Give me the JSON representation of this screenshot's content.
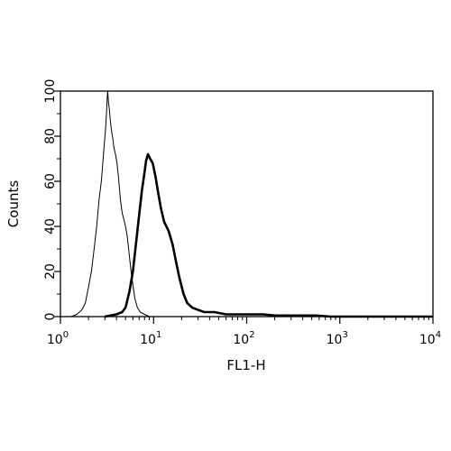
{
  "chart_data": {
    "type": "line",
    "xlabel": "FL1-H",
    "ylabel": "Counts",
    "x_scale": "log",
    "xlim": [
      1,
      10000
    ],
    "ylim": [
      0,
      100
    ],
    "x_ticks": [
      {
        "value": 1,
        "base": "10",
        "exp": "0"
      },
      {
        "value": 10,
        "base": "10",
        "exp": "1"
      },
      {
        "value": 100,
        "base": "10",
        "exp": "2"
      },
      {
        "value": 1000,
        "base": "10",
        "exp": "3"
      },
      {
        "value": 10000,
        "base": "10",
        "exp": "4"
      }
    ],
    "y_ticks": [
      "0",
      "20",
      "40",
      "60",
      "80",
      "100"
    ],
    "grid": false,
    "series": [
      {
        "style": "thin",
        "color": "#000000",
        "points": [
          [
            1.3,
            0
          ],
          [
            1.5,
            1
          ],
          [
            1.7,
            3
          ],
          [
            1.85,
            6
          ],
          [
            2.0,
            13
          ],
          [
            2.15,
            20
          ],
          [
            2.3,
            30
          ],
          [
            2.45,
            40
          ],
          [
            2.6,
            52
          ],
          [
            2.75,
            60
          ],
          [
            2.85,
            68
          ],
          [
            2.95,
            76
          ],
          [
            3.05,
            83
          ],
          [
            3.12,
            90
          ],
          [
            3.18,
            97
          ],
          [
            3.22,
            100
          ],
          [
            3.28,
            95
          ],
          [
            3.35,
            92
          ],
          [
            3.45,
            86
          ],
          [
            3.55,
            82
          ],
          [
            3.65,
            79
          ],
          [
            3.75,
            75
          ],
          [
            3.9,
            72
          ],
          [
            4.05,
            68
          ],
          [
            4.2,
            62
          ],
          [
            4.4,
            52
          ],
          [
            4.6,
            46
          ],
          [
            4.8,
            43
          ],
          [
            5.0,
            40
          ],
          [
            5.2,
            36
          ],
          [
            5.4,
            30
          ],
          [
            5.7,
            21
          ],
          [
            6.0,
            14
          ],
          [
            6.3,
            8
          ],
          [
            6.7,
            4
          ],
          [
            7.2,
            2
          ],
          [
            8.0,
            1
          ],
          [
            9.0,
            0
          ]
        ]
      },
      {
        "style": "thick",
        "color": "#000000",
        "points": [
          [
            3.0,
            0
          ],
          [
            4.0,
            1
          ],
          [
            4.6,
            2
          ],
          [
            5.0,
            4
          ],
          [
            5.5,
            11
          ],
          [
            6.0,
            20
          ],
          [
            6.5,
            33
          ],
          [
            7.0,
            45
          ],
          [
            7.5,
            56
          ],
          [
            8.0,
            64
          ],
          [
            8.3,
            69
          ],
          [
            8.7,
            72
          ],
          [
            9.2,
            70
          ],
          [
            9.8,
            68
          ],
          [
            10.5,
            62
          ],
          [
            11.2,
            55
          ],
          [
            12.0,
            48
          ],
          [
            13.0,
            42
          ],
          [
            14.5,
            38
          ],
          [
            16.0,
            32
          ],
          [
            17.5,
            24
          ],
          [
            19.0,
            17
          ],
          [
            21.0,
            10
          ],
          [
            23.0,
            6
          ],
          [
            26.0,
            4
          ],
          [
            30.0,
            3
          ],
          [
            35.0,
            2
          ],
          [
            45.0,
            2
          ],
          [
            60.0,
            1
          ],
          [
            80.0,
            1
          ],
          [
            110.0,
            1
          ],
          [
            150.0,
            1
          ],
          [
            200.0,
            0.5
          ],
          [
            300.0,
            0.5
          ],
          [
            400.0,
            0.5
          ],
          [
            550.0,
            0.5
          ],
          [
            800.0,
            0
          ],
          [
            1500.0,
            0
          ],
          [
            10000.0,
            0
          ]
        ]
      }
    ]
  }
}
